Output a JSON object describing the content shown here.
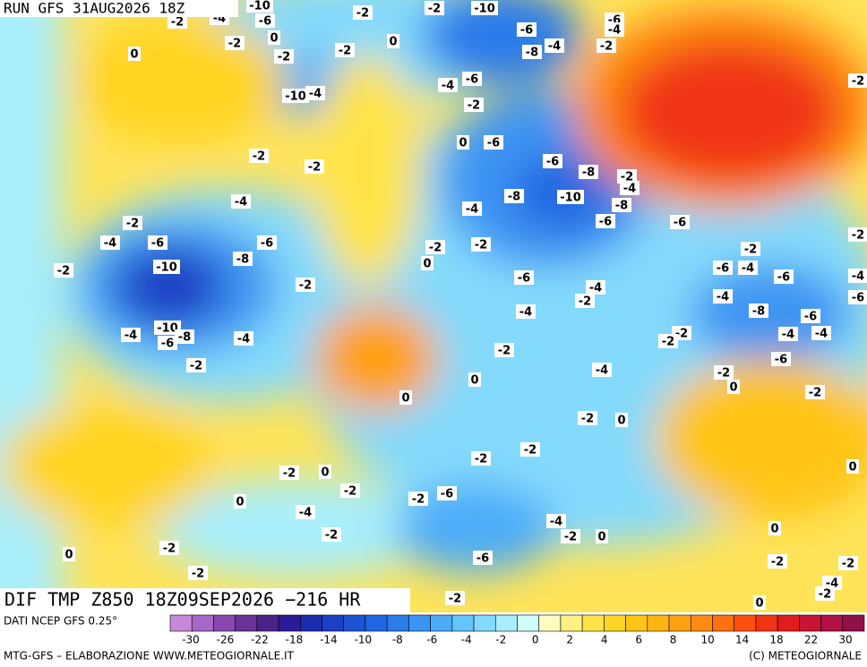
{
  "header": {
    "run": "RUN GFS 31AUG2026 18Z"
  },
  "map": {
    "title": "DIF TMP Z850 18Z09SEP2026 −216 HR",
    "contour_labels": [
      -10,
      -2,
      -4,
      -6,
      -2,
      -2,
      -10,
      -6,
      -4,
      -2,
      -6,
      -4,
      -8,
      0,
      -2,
      0,
      -2,
      -2,
      0,
      -10,
      -4,
      -4,
      -6,
      -2,
      0,
      -6,
      -2,
      -2,
      -6,
      -8,
      -2,
      -4,
      -8,
      -10,
      -8,
      -4,
      -2,
      -4,
      -6,
      -6,
      -8,
      -10,
      -2,
      -4,
      -6,
      -6,
      -2,
      -2,
      0,
      -2,
      -6,
      -4,
      -2,
      -4,
      -2,
      -6,
      -4,
      -6,
      -4,
      -8,
      -6,
      -4,
      -4,
      -10,
      -6,
      -8,
      -4,
      -4,
      -2,
      -2,
      -2,
      -2,
      -6,
      -4,
      -2,
      0,
      -2,
      0,
      0,
      -2,
      0,
      -2,
      -2,
      -2,
      0,
      -2,
      -2,
      -6,
      0,
      -4,
      -2,
      -4,
      -2,
      0,
      0,
      -2,
      0,
      -6,
      -2,
      -2,
      -2,
      -4,
      -2,
      -2,
      0,
      0,
      -2,
      -4,
      -6,
      -2
    ]
  },
  "legend": {
    "source": "DATI NCEP GFS 0.25°",
    "colors": [
      "#c888d8",
      "#a868c8",
      "#8848b0",
      "#683498",
      "#4a2288",
      "#2a1c98",
      "#1c2cb0",
      "#1c40c4",
      "#1c54d4",
      "#2068e2",
      "#2c7cea",
      "#3c94f2",
      "#4cacf8",
      "#64c4fc",
      "#84dafc",
      "#a8eefc",
      "#d0fcfc",
      "#fffcc0",
      "#fff080",
      "#ffe448",
      "#ffd424",
      "#ffc414",
      "#ffb410",
      "#ffa010",
      "#ff8c10",
      "#ff7010",
      "#ff5010",
      "#f03414",
      "#e01c1c",
      "#c81434",
      "#b01044",
      "#901048"
    ],
    "ticks": [
      -30,
      -26,
      -22,
      -18,
      -14,
      -10,
      -8,
      -6,
      -4,
      -2,
      0,
      2,
      4,
      6,
      8,
      10,
      14,
      18,
      22,
      30
    ]
  },
  "footer": {
    "credit": "MTG-GFS – ELABORAZIONE WWW.METEOGIORNALE.IT",
    "copyright": "(C) METEOGIORNALE"
  }
}
